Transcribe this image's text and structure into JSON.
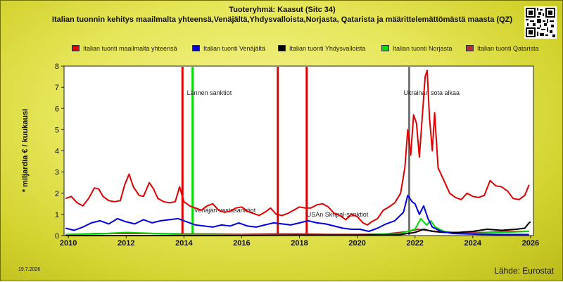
{
  "title": "Tuoteryhmä: Kaasut (Sitc 34)",
  "subtitle": "Italian tuonnin kehitys maailmalta yhteensä,Venäjältä,Yhdysvalloista,Norjasta, Qatarista ja määrittelemättömästä maasta (QZ)",
  "date_stamp": "19.7.2026",
  "source": "Lähde: Eurostat",
  "qr_icon": "qr-code-icon",
  "chart_data": {
    "type": "line",
    "title": "Tuoteryhmä: Kaasut (Sitc 34)",
    "ylabel": "* miljardia € / kuukausi",
    "xlabel": "",
    "xlim": [
      2009.85,
      2026.1
    ],
    "ylim": [
      0,
      8
    ],
    "xticks": [
      2010,
      2012,
      2014,
      2016,
      2018,
      2020,
      2022,
      2024,
      2026
    ],
    "yticks": [
      0,
      1,
      2,
      3,
      4,
      5,
      6,
      7,
      8
    ],
    "grid": false,
    "legend_position": "top",
    "series": [
      {
        "name": "Italian tuonti maailmalta yhteensä",
        "color": "#e00000",
        "points": [
          [
            2009.9,
            1.75
          ],
          [
            2010.1,
            1.85
          ],
          [
            2010.3,
            1.55
          ],
          [
            2010.5,
            1.4
          ],
          [
            2010.7,
            1.75
          ],
          [
            2010.9,
            2.25
          ],
          [
            2011.05,
            2.2
          ],
          [
            2011.2,
            1.85
          ],
          [
            2011.4,
            1.65
          ],
          [
            2011.6,
            1.6
          ],
          [
            2011.8,
            1.65
          ],
          [
            2011.95,
            2.4
          ],
          [
            2012.1,
            2.9
          ],
          [
            2012.25,
            2.3
          ],
          [
            2012.45,
            1.9
          ],
          [
            2012.6,
            1.85
          ],
          [
            2012.8,
            2.5
          ],
          [
            2012.95,
            2.2
          ],
          [
            2013.1,
            1.75
          ],
          [
            2013.3,
            1.6
          ],
          [
            2013.5,
            1.55
          ],
          [
            2013.7,
            1.6
          ],
          [
            2013.85,
            2.3
          ],
          [
            2014.0,
            1.6
          ],
          [
            2014.2,
            1.4
          ],
          [
            2014.4,
            1.3
          ],
          [
            2014.6,
            1.2
          ],
          [
            2014.8,
            1.4
          ],
          [
            2015.0,
            1.5
          ],
          [
            2015.2,
            1.2
          ],
          [
            2015.4,
            1.1
          ],
          [
            2015.6,
            1.15
          ],
          [
            2015.8,
            1.3
          ],
          [
            2016.0,
            1.35
          ],
          [
            2016.2,
            1.15
          ],
          [
            2016.4,
            1.05
          ],
          [
            2016.6,
            0.95
          ],
          [
            2016.8,
            1.1
          ],
          [
            2017.0,
            1.3
          ],
          [
            2017.2,
            1.0
          ],
          [
            2017.4,
            0.95
          ],
          [
            2017.6,
            1.05
          ],
          [
            2017.8,
            1.2
          ],
          [
            2018.0,
            1.35
          ],
          [
            2018.2,
            1.3
          ],
          [
            2018.4,
            1.3
          ],
          [
            2018.6,
            1.45
          ],
          [
            2018.8,
            1.5
          ],
          [
            2019.0,
            1.35
          ],
          [
            2019.2,
            1.05
          ],
          [
            2019.4,
            0.95
          ],
          [
            2019.6,
            0.75
          ],
          [
            2019.8,
            1.0
          ],
          [
            2020.0,
            0.9
          ],
          [
            2020.2,
            0.6
          ],
          [
            2020.35,
            0.5
          ],
          [
            2020.5,
            0.65
          ],
          [
            2020.7,
            0.8
          ],
          [
            2020.9,
            1.2
          ],
          [
            2021.1,
            1.35
          ],
          [
            2021.3,
            1.55
          ],
          [
            2021.5,
            2.0
          ],
          [
            2021.65,
            3.2
          ],
          [
            2021.75,
            5.0
          ],
          [
            2021.85,
            3.8
          ],
          [
            2021.95,
            5.7
          ],
          [
            2022.05,
            5.3
          ],
          [
            2022.15,
            3.7
          ],
          [
            2022.25,
            5.6
          ],
          [
            2022.35,
            7.5
          ],
          [
            2022.42,
            7.8
          ],
          [
            2022.5,
            5.6
          ],
          [
            2022.6,
            4.0
          ],
          [
            2022.68,
            5.8
          ],
          [
            2022.8,
            3.2
          ],
          [
            2023.0,
            2.6
          ],
          [
            2023.2,
            2.0
          ],
          [
            2023.4,
            1.8
          ],
          [
            2023.6,
            1.7
          ],
          [
            2023.8,
            2.0
          ],
          [
            2024.0,
            1.85
          ],
          [
            2024.2,
            1.8
          ],
          [
            2024.4,
            1.9
          ],
          [
            2024.6,
            2.6
          ],
          [
            2024.8,
            2.35
          ],
          [
            2025.0,
            2.3
          ],
          [
            2025.2,
            2.1
          ],
          [
            2025.4,
            1.75
          ],
          [
            2025.6,
            1.7
          ],
          [
            2025.8,
            1.9
          ],
          [
            2025.95,
            2.4
          ]
        ]
      },
      {
        "name": "Italian tuonti Venäjältä",
        "color": "#0000e0",
        "points": [
          [
            2009.9,
            0.35
          ],
          [
            2010.2,
            0.25
          ],
          [
            2010.5,
            0.4
          ],
          [
            2010.8,
            0.6
          ],
          [
            2011.1,
            0.7
          ],
          [
            2011.4,
            0.55
          ],
          [
            2011.7,
            0.8
          ],
          [
            2012.0,
            0.65
          ],
          [
            2012.3,
            0.55
          ],
          [
            2012.6,
            0.75
          ],
          [
            2012.9,
            0.6
          ],
          [
            2013.2,
            0.7
          ],
          [
            2013.5,
            0.75
          ],
          [
            2013.8,
            0.8
          ],
          [
            2014.1,
            0.65
          ],
          [
            2014.4,
            0.5
          ],
          [
            2014.7,
            0.45
          ],
          [
            2015.0,
            0.4
          ],
          [
            2015.3,
            0.5
          ],
          [
            2015.6,
            0.45
          ],
          [
            2015.9,
            0.6
          ],
          [
            2016.2,
            0.45
          ],
          [
            2016.5,
            0.4
          ],
          [
            2016.8,
            0.5
          ],
          [
            2017.1,
            0.6
          ],
          [
            2017.4,
            0.55
          ],
          [
            2017.7,
            0.5
          ],
          [
            2018.0,
            0.6
          ],
          [
            2018.3,
            0.7
          ],
          [
            2018.6,
            0.6
          ],
          [
            2018.9,
            0.55
          ],
          [
            2019.2,
            0.45
          ],
          [
            2019.5,
            0.35
          ],
          [
            2019.8,
            0.3
          ],
          [
            2020.1,
            0.3
          ],
          [
            2020.4,
            0.2
          ],
          [
            2020.7,
            0.35
          ],
          [
            2021.0,
            0.55
          ],
          [
            2021.3,
            0.7
          ],
          [
            2021.6,
            1.1
          ],
          [
            2021.75,
            1.9
          ],
          [
            2021.9,
            1.6
          ],
          [
            2022.0,
            1.5
          ],
          [
            2022.15,
            1.0
          ],
          [
            2022.3,
            1.4
          ],
          [
            2022.45,
            0.8
          ],
          [
            2022.6,
            0.4
          ],
          [
            2022.9,
            0.2
          ],
          [
            2023.3,
            0.1
          ],
          [
            2023.8,
            0.08
          ],
          [
            2024.3,
            0.06
          ],
          [
            2024.8,
            0.05
          ],
          [
            2025.3,
            0.05
          ],
          [
            2025.95,
            0.05
          ]
        ]
      },
      {
        "name": "Italian tuonti Yhdysvalloista",
        "color": "#000000",
        "points": [
          [
            2009.9,
            0.0
          ],
          [
            2015.0,
            0.0
          ],
          [
            2018.0,
            0.02
          ],
          [
            2020.0,
            0.02
          ],
          [
            2021.5,
            0.05
          ],
          [
            2022.0,
            0.15
          ],
          [
            2022.3,
            0.3
          ],
          [
            2022.6,
            0.2
          ],
          [
            2023.0,
            0.15
          ],
          [
            2023.5,
            0.15
          ],
          [
            2024.0,
            0.2
          ],
          [
            2024.5,
            0.3
          ],
          [
            2025.0,
            0.25
          ],
          [
            2025.5,
            0.3
          ],
          [
            2025.8,
            0.35
          ],
          [
            2025.95,
            0.6
          ],
          [
            2026.0,
            0.65
          ]
        ]
      },
      {
        "name": "Italian tuonti Norjasta",
        "color": "#00dd00",
        "points": [
          [
            2009.9,
            0.05
          ],
          [
            2011.0,
            0.08
          ],
          [
            2012.0,
            0.15
          ],
          [
            2013.0,
            0.1
          ],
          [
            2014.0,
            0.05
          ],
          [
            2015.0,
            0.05
          ],
          [
            2016.0,
            0.03
          ],
          [
            2017.0,
            0.03
          ],
          [
            2018.0,
            0.02
          ],
          [
            2019.0,
            0.02
          ],
          [
            2020.0,
            0.02
          ],
          [
            2021.5,
            0.1
          ],
          [
            2022.0,
            0.3
          ],
          [
            2022.2,
            0.8
          ],
          [
            2022.4,
            0.5
          ],
          [
            2022.55,
            0.7
          ],
          [
            2022.7,
            0.4
          ],
          [
            2023.0,
            0.2
          ],
          [
            2023.5,
            0.1
          ],
          [
            2024.0,
            0.1
          ],
          [
            2025.0,
            0.15
          ],
          [
            2025.95,
            0.2
          ]
        ]
      },
      {
        "name": "Italian tuonti Qatarista",
        "color": "#b03030",
        "points": [
          [
            2009.9,
            0.05
          ],
          [
            2011.0,
            0.1
          ],
          [
            2012.0,
            0.1
          ],
          [
            2013.0,
            0.1
          ],
          [
            2014.0,
            0.08
          ],
          [
            2015.0,
            0.08
          ],
          [
            2016.0,
            0.06
          ],
          [
            2017.0,
            0.08
          ],
          [
            2018.0,
            0.08
          ],
          [
            2019.0,
            0.06
          ],
          [
            2020.0,
            0.06
          ],
          [
            2021.0,
            0.08
          ],
          [
            2021.8,
            0.2
          ],
          [
            2022.1,
            0.3
          ],
          [
            2022.4,
            0.25
          ],
          [
            2022.7,
            0.2
          ],
          [
            2023.2,
            0.15
          ],
          [
            2023.8,
            0.15
          ],
          [
            2024.5,
            0.15
          ],
          [
            2025.2,
            0.2
          ],
          [
            2025.95,
            0.2
          ]
        ]
      }
    ],
    "events": [
      {
        "x": 2013.95,
        "color": "#e00000",
        "label": ""
      },
      {
        "x": 2014.3,
        "color": "#00dd00",
        "label": "Lännen sanktiot"
      },
      {
        "x": 2017.25,
        "color": "#e00000",
        "label": ""
      },
      {
        "x": 2018.25,
        "color": "#e00000",
        "label": ""
      },
      {
        "x": 2021.8,
        "color": "#777777",
        "label": "Ukrainan sota alkaa"
      }
    ],
    "annotations": [
      {
        "text": "Venäjän vastasanktiot",
        "x": 2014.35,
        "y": 1.1
      },
      {
        "text": "USAn Skripal-sanktiot",
        "x": 2018.25,
        "y": 0.9
      }
    ]
  }
}
